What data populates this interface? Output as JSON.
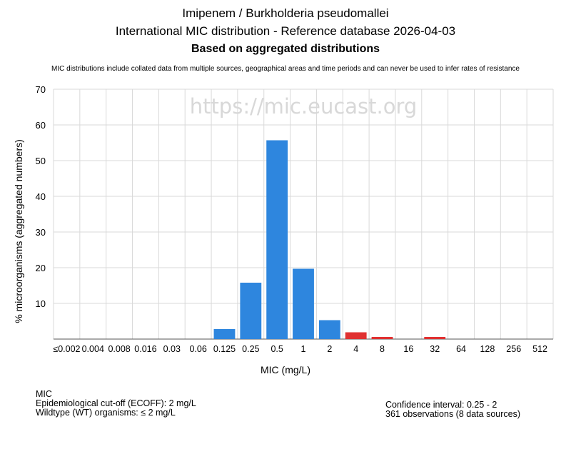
{
  "header": {
    "title": "Imipenem / Burkholderia pseudomallei",
    "subtitle": "International MIC distribution - Reference database 2026-04-03",
    "subtitle2": "Based on aggregated distributions",
    "note": "MIC distributions include collated data from multiple sources, geographical areas and time periods and can never be used to infer rates of resistance"
  },
  "watermark": "https://mic.eucast.org",
  "colors": {
    "wildtype": "#2e86de",
    "non_wildtype": "#e03131",
    "grid": "#d9d9d9"
  },
  "chart_data": {
    "type": "bar",
    "title": "Imipenem / Burkholderia pseudomallei",
    "xlabel": "MIC (mg/L)",
    "ylabel": "% microorganisms (aggregated numbers)",
    "ylim": [
      0,
      70
    ],
    "yticks": [
      10,
      20,
      30,
      40,
      50,
      60,
      70
    ],
    "grid": true,
    "categories": [
      "≤0.002",
      "0.004",
      "0.008",
      "0.016",
      "0.03",
      "0.06",
      "0.125",
      "0.25",
      "0.5",
      "1",
      "2",
      "4",
      "8",
      "16",
      "32",
      "64",
      "128",
      "256",
      "512"
    ],
    "values": [
      0,
      0,
      0,
      0,
      0,
      0,
      2.8,
      15.8,
      55.7,
      19.7,
      5.3,
      1.9,
      0.6,
      0,
      0.6,
      0,
      0,
      0,
      0
    ],
    "ecoff": 2
  },
  "info": {
    "left": [
      "MIC",
      "Epidemiological cut-off (ECOFF): 2 mg/L",
      "Wildtype (WT) organisms: ≤ 2 mg/L"
    ],
    "right": [
      "Confidence interval: 0.25 - 2",
      "361 observations (8 data sources)"
    ]
  }
}
